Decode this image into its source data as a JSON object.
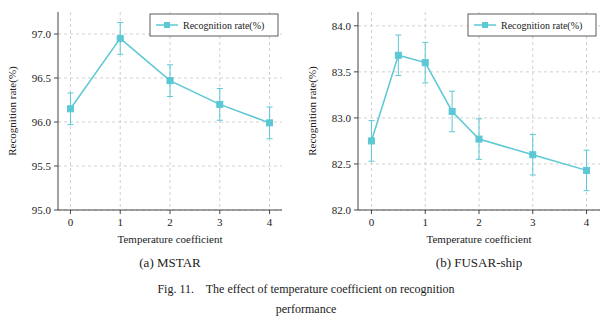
{
  "chart_data": [
    {
      "type": "line",
      "title": "(a) MSTAR",
      "x": [
        0,
        1,
        2,
        3,
        4
      ],
      "series": [
        {
          "name": "Recognition rate(%)",
          "color": "#5bc8d4",
          "marker": "square",
          "values": [
            96.15,
            96.95,
            96.47,
            96.2,
            95.99
          ],
          "errors": [
            0.18,
            0.18,
            0.18,
            0.18,
            0.18
          ]
        }
      ],
      "xlabel": "Temperature coefficient",
      "ylabel": "Recognition rate(%)",
      "xlim": [
        -0.25,
        4.25
      ],
      "ylim": [
        95.0,
        97.25
      ],
      "xticks": [
        0,
        1,
        2,
        3,
        4
      ],
      "yticks": [
        {
          "value": 95.0,
          "label": "95.0"
        },
        {
          "value": 95.5,
          "label": "95.5"
        },
        {
          "value": 96.0,
          "label": "96.0"
        },
        {
          "value": 96.5,
          "label": "96.5"
        },
        {
          "value": 97.0,
          "label": "97.0"
        }
      ],
      "grid": true,
      "legend": "upper right"
    },
    {
      "type": "line",
      "title": "(b) FUSAR-ship",
      "x": [
        0,
        0.5,
        1,
        1.5,
        2,
        3,
        4
      ],
      "series": [
        {
          "name": "Recognition rate(%)",
          "color": "#5bc8d4",
          "marker": "square",
          "values": [
            82.75,
            83.68,
            83.6,
            83.07,
            82.77,
            82.6,
            82.43
          ],
          "errors": [
            0.22,
            0.22,
            0.22,
            0.22,
            0.22,
            0.22,
            0.22
          ]
        }
      ],
      "xlabel": "Temperature coefficient",
      "ylabel": "Recognition rate(%)",
      "xlim": [
        -0.25,
        4.25
      ],
      "ylim": [
        82.0,
        84.15
      ],
      "xticks": [
        0,
        1,
        2,
        3,
        4
      ],
      "yticks": [
        {
          "value": 82.0,
          "label": "82.0"
        },
        {
          "value": 82.5,
          "label": "82.5"
        },
        {
          "value": 83.0,
          "label": "83.0"
        },
        {
          "value": 83.5,
          "label": "83.5"
        },
        {
          "value": 84.0,
          "label": "84.0"
        }
      ],
      "grid": true,
      "legend": "upper right"
    }
  ],
  "annotations": [
    "Fig. 11.    The effect of temperature coefficient on recognition",
    "performance"
  ]
}
